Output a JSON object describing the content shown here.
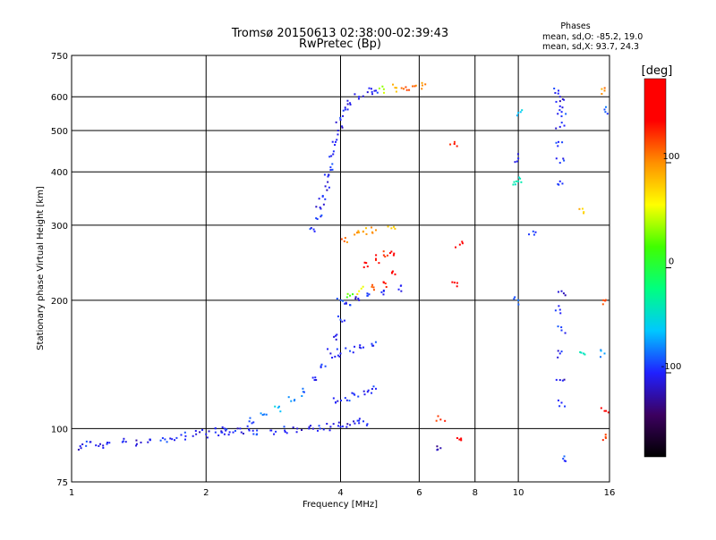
{
  "chart_data": {
    "type": "scatter",
    "title": "Tromsø 20150613 02:38:00-02:39:43",
    "subtitle": "RwPretec (Bp)",
    "xlabel": "Frequency [MHz]",
    "ylabel": "Stationary phase Virtual Height [km]",
    "x_scale": "log",
    "y_scale": "log",
    "xlim": [
      1,
      16
    ],
    "ylim": [
      75,
      750
    ],
    "x_ticks": [
      1,
      2,
      4,
      6,
      8,
      10,
      16
    ],
    "y_ticks": [
      75,
      100,
      200,
      300,
      400,
      500,
      600,
      750
    ],
    "grid": true,
    "stats": {
      "heading": "Phases",
      "line_o": "mean, sd,O: -85.2, 19.0",
      "line_x": "mean, sd,X:  93.7, 24.3"
    },
    "colorbar": {
      "label": "[deg]",
      "range": [
        -180,
        180
      ],
      "ticks": [
        100,
        0,
        -100
      ],
      "colors": [
        "#000000",
        "#3c0060",
        "#2020ff",
        "#00c8ff",
        "#00ff80",
        "#40ff00",
        "#ffff00",
        "#ff9000",
        "#ff0000",
        "#ff0000"
      ]
    },
    "series": [
      {
        "name": "",
        "trace": [
          [
            1.0,
            92,
            -100
          ],
          [
            1.05,
            90,
            -110
          ],
          [
            1.1,
            93,
            -100
          ],
          [
            1.15,
            91,
            -105
          ],
          [
            1.2,
            92,
            -95
          ],
          [
            1.3,
            93,
            -100
          ],
          [
            1.4,
            92,
            -110
          ],
          [
            1.5,
            94,
            -100
          ],
          [
            1.6,
            95,
            -95
          ],
          [
            1.7,
            94,
            -105
          ],
          [
            1.8,
            96,
            -100
          ],
          [
            1.9,
            97,
            -110
          ],
          [
            2.0,
            97,
            -100
          ],
          [
            2.1,
            98,
            -95
          ],
          [
            2.2,
            97,
            -105
          ],
          [
            2.3,
            98,
            -100
          ],
          [
            2.4,
            98,
            -110
          ],
          [
            2.5,
            99,
            -100
          ],
          [
            2.6,
            99,
            -95
          ],
          [
            2.8,
            99,
            -105
          ],
          [
            3.0,
            99,
            -100
          ],
          [
            3.2,
            100,
            -110
          ],
          [
            3.4,
            100,
            -100
          ],
          [
            3.6,
            100,
            -95
          ],
          [
            3.8,
            101,
            -105
          ],
          [
            4.0,
            101,
            -100
          ],
          [
            4.2,
            102,
            -110
          ],
          [
            4.4,
            103,
            -100
          ],
          [
            4.5,
            104,
            -95
          ]
        ]
      },
      {
        "name": "",
        "trace": [
          [
            2.2,
            100,
            -100
          ],
          [
            2.5,
            104,
            -90
          ],
          [
            2.7,
            108,
            -80
          ],
          [
            2.9,
            112,
            -60
          ],
          [
            3.1,
            116,
            -70
          ],
          [
            3.3,
            122,
            -80
          ],
          [
            3.5,
            130,
            -100
          ],
          [
            3.7,
            140,
            -90
          ],
          [
            3.8,
            150,
            -110
          ],
          [
            3.9,
            165,
            -100
          ],
          [
            4.0,
            180,
            -90
          ],
          [
            4.2,
            195,
            -100
          ],
          [
            4.4,
            200,
            -110
          ],
          [
            4.6,
            205,
            -100
          ],
          [
            5.0,
            210,
            -95
          ],
          [
            5.4,
            212,
            -100
          ]
        ]
      },
      {
        "name": "",
        "trace": [
          [
            3.9,
            115,
            -100
          ],
          [
            4.1,
            118,
            -95
          ],
          [
            4.3,
            120,
            -100
          ],
          [
            4.6,
            122,
            -105
          ],
          [
            4.8,
            124,
            -100
          ],
          [
            4.0,
            150,
            -100
          ],
          [
            4.2,
            152,
            -90
          ],
          [
            4.5,
            155,
            -100
          ],
          [
            4.7,
            158,
            -95
          ],
          [
            4.0,
            200,
            -90
          ],
          [
            4.2,
            205,
            20
          ],
          [
            4.4,
            210,
            60
          ],
          [
            4.7,
            215,
            110
          ],
          [
            5.0,
            220,
            140
          ],
          [
            5.3,
            230,
            150
          ],
          [
            4.6,
            240,
            150
          ],
          [
            4.8,
            250,
            140
          ],
          [
            5.0,
            255,
            130
          ],
          [
            5.2,
            260,
            150
          ],
          [
            4.1,
            280,
            110
          ],
          [
            4.3,
            285,
            100
          ],
          [
            4.5,
            290,
            90
          ],
          [
            4.8,
            292,
            100
          ],
          [
            5.2,
            295,
            80
          ]
        ]
      },
      {
        "name": "",
        "trace": [
          [
            3.5,
            290,
            -100
          ],
          [
            3.55,
            310,
            -95
          ],
          [
            3.6,
            330,
            -105
          ],
          [
            3.65,
            350,
            -100
          ],
          [
            3.7,
            370,
            -110
          ],
          [
            3.75,
            390,
            -100
          ],
          [
            3.8,
            410,
            -95
          ],
          [
            3.85,
            440,
            -105
          ],
          [
            3.9,
            470,
            -100
          ],
          [
            3.95,
            500,
            -110
          ],
          [
            4.0,
            530,
            -100
          ],
          [
            4.1,
            560,
            -95
          ],
          [
            4.2,
            580,
            -105
          ],
          [
            4.4,
            600,
            -100
          ],
          [
            4.6,
            615,
            -110
          ],
          [
            4.8,
            620,
            -100
          ],
          [
            5.0,
            625,
            40
          ],
          [
            5.3,
            630,
            90
          ],
          [
            5.6,
            632,
            120
          ],
          [
            5.8,
            635,
            110
          ],
          [
            6.1,
            638,
            100
          ]
        ]
      },
      {
        "name": "",
        "trace": [
          [
            12.3,
            620,
            -100
          ],
          [
            12.4,
            600,
            -110
          ],
          [
            12.4,
            570,
            -100
          ],
          [
            12.5,
            540,
            -95
          ],
          [
            12.4,
            510,
            -105
          ],
          [
            12.3,
            470,
            -100
          ],
          [
            12.4,
            420,
            -95
          ],
          [
            12.4,
            380,
            -100
          ],
          [
            12.5,
            210,
            -110
          ],
          [
            12.4,
            190,
            -100
          ],
          [
            12.5,
            170,
            -95
          ],
          [
            12.4,
            150,
            -100
          ],
          [
            12.4,
            130,
            -110
          ],
          [
            12.5,
            115,
            -100
          ],
          [
            12.6,
            85,
            -90
          ],
          [
            10.0,
            550,
            -60
          ],
          [
            10.0,
            430,
            -100
          ],
          [
            10.0,
            380,
            -40
          ],
          [
            10.0,
            200,
            -80
          ],
          [
            15.6,
            620,
            100
          ],
          [
            15.6,
            560,
            -90
          ],
          [
            15.5,
            200,
            120
          ],
          [
            15.6,
            150,
            -70
          ],
          [
            15.6,
            110,
            150
          ],
          [
            15.7,
            95,
            120
          ],
          [
            7.2,
            470,
            130
          ],
          [
            7.2,
            220,
            150
          ],
          [
            7.4,
            270,
            140
          ],
          [
            6.7,
            105,
            130
          ],
          [
            7.3,
            95,
            160
          ],
          [
            6.7,
            90,
            -120
          ],
          [
            10.8,
            290,
            -90
          ],
          [
            9.9,
            380,
            -30
          ],
          [
            14.0,
            320,
            80
          ],
          [
            14.0,
            150,
            -40
          ]
        ]
      }
    ]
  }
}
